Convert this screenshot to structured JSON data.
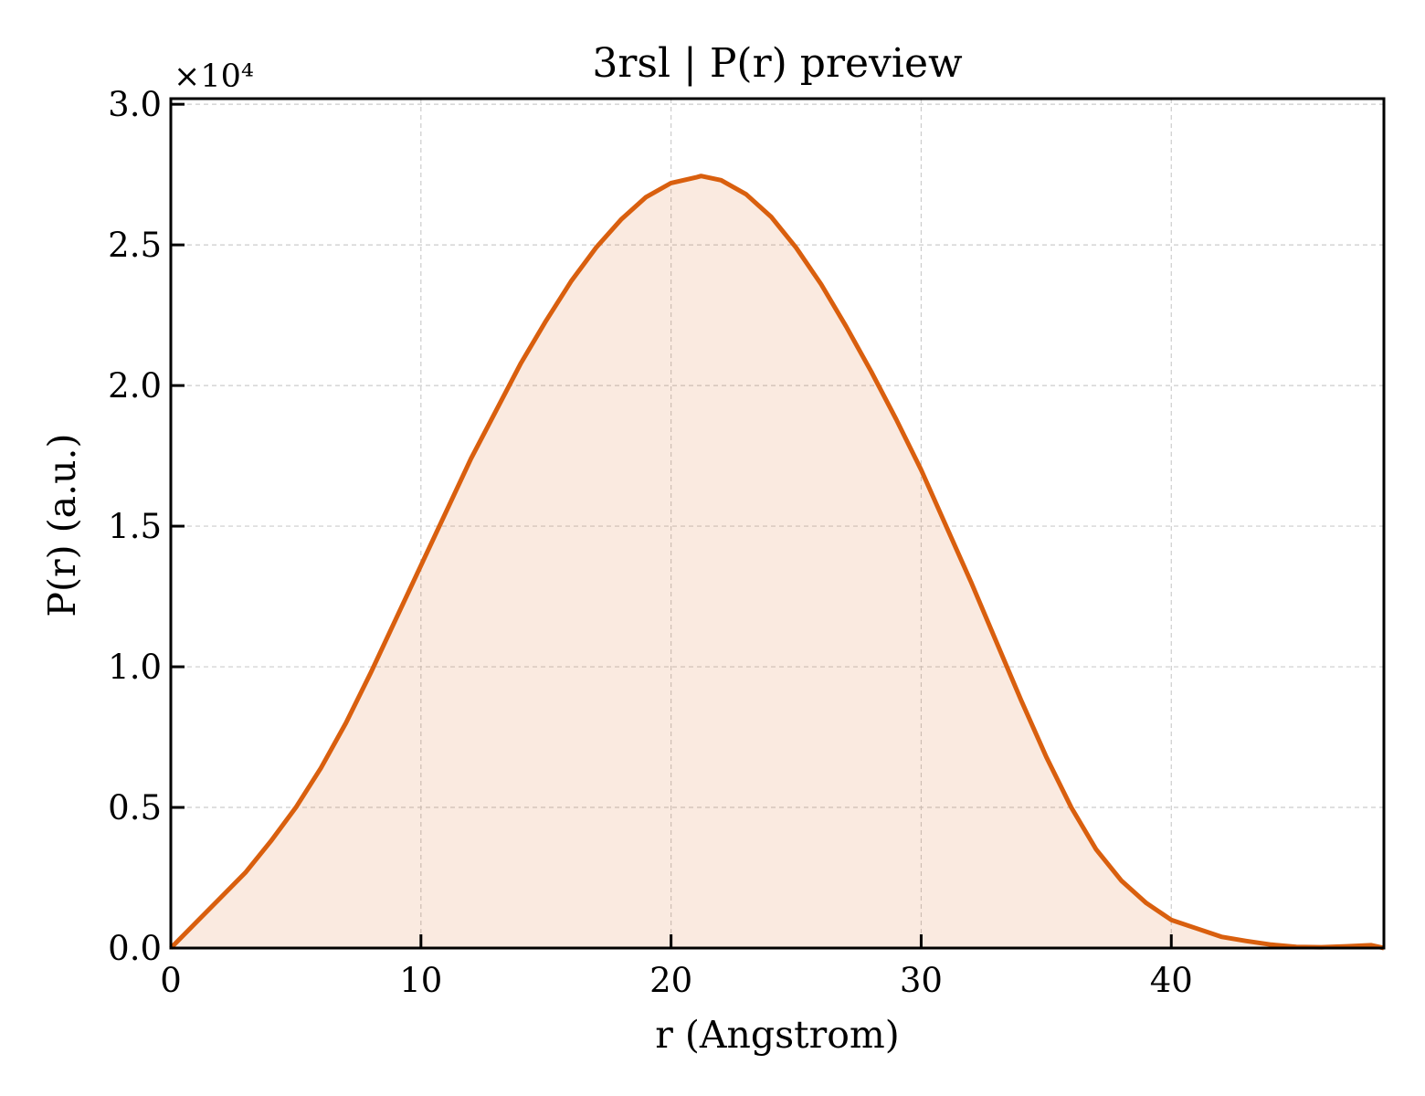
{
  "chart_data": {
    "type": "area",
    "title": "3rsl | P(r) preview",
    "xlabel": "r (Angstrom)",
    "ylabel": "P(r) (a.u.)",
    "y_multiplier_label": "×10⁴",
    "xlim": [
      0,
      48.5
    ],
    "ylim": [
      0,
      3.02
    ],
    "y_scale_factor": 10000,
    "x_ticks": [
      0,
      10,
      20,
      30,
      40
    ],
    "x_tick_labels": [
      "0",
      "10",
      "20",
      "30",
      "40"
    ],
    "y_ticks": [
      0,
      0.5,
      1.0,
      1.5,
      2.0,
      2.5,
      3.0
    ],
    "y_tick_labels": [
      "0.0",
      "0.5",
      "1.0",
      "1.5",
      "2.0",
      "2.5",
      "3.0"
    ],
    "grid": true,
    "legend": "none",
    "colors": {
      "line": "#d95f0e",
      "fill": "#d95f0e",
      "grid": "#cccccc",
      "axes": "#000000"
    },
    "series": [
      {
        "values_unit": "x1e4",
        "x": [
          0,
          1,
          2,
          3,
          4,
          5,
          6,
          7,
          8,
          9,
          10,
          11,
          12,
          13,
          14,
          15,
          16,
          17,
          18,
          19,
          20,
          21,
          21.2,
          22,
          23,
          24,
          25,
          26,
          27,
          28,
          29,
          30,
          31,
          32,
          33,
          34,
          35,
          36,
          37,
          38,
          39,
          40,
          41,
          42,
          43,
          44,
          45,
          46,
          47,
          48,
          48.5
        ],
        "y": [
          0.0,
          0.09,
          0.18,
          0.27,
          0.38,
          0.5,
          0.64,
          0.8,
          0.98,
          1.17,
          1.36,
          1.55,
          1.74,
          1.91,
          2.08,
          2.23,
          2.37,
          2.49,
          2.59,
          2.67,
          2.72,
          2.74,
          2.745,
          2.73,
          2.68,
          2.6,
          2.49,
          2.36,
          2.21,
          2.05,
          1.88,
          1.7,
          1.5,
          1.3,
          1.09,
          0.88,
          0.68,
          0.5,
          0.35,
          0.24,
          0.16,
          0.1,
          0.07,
          0.04,
          0.025,
          0.012,
          0.004,
          0.003,
          0.006,
          0.01,
          0.0
        ]
      }
    ]
  }
}
